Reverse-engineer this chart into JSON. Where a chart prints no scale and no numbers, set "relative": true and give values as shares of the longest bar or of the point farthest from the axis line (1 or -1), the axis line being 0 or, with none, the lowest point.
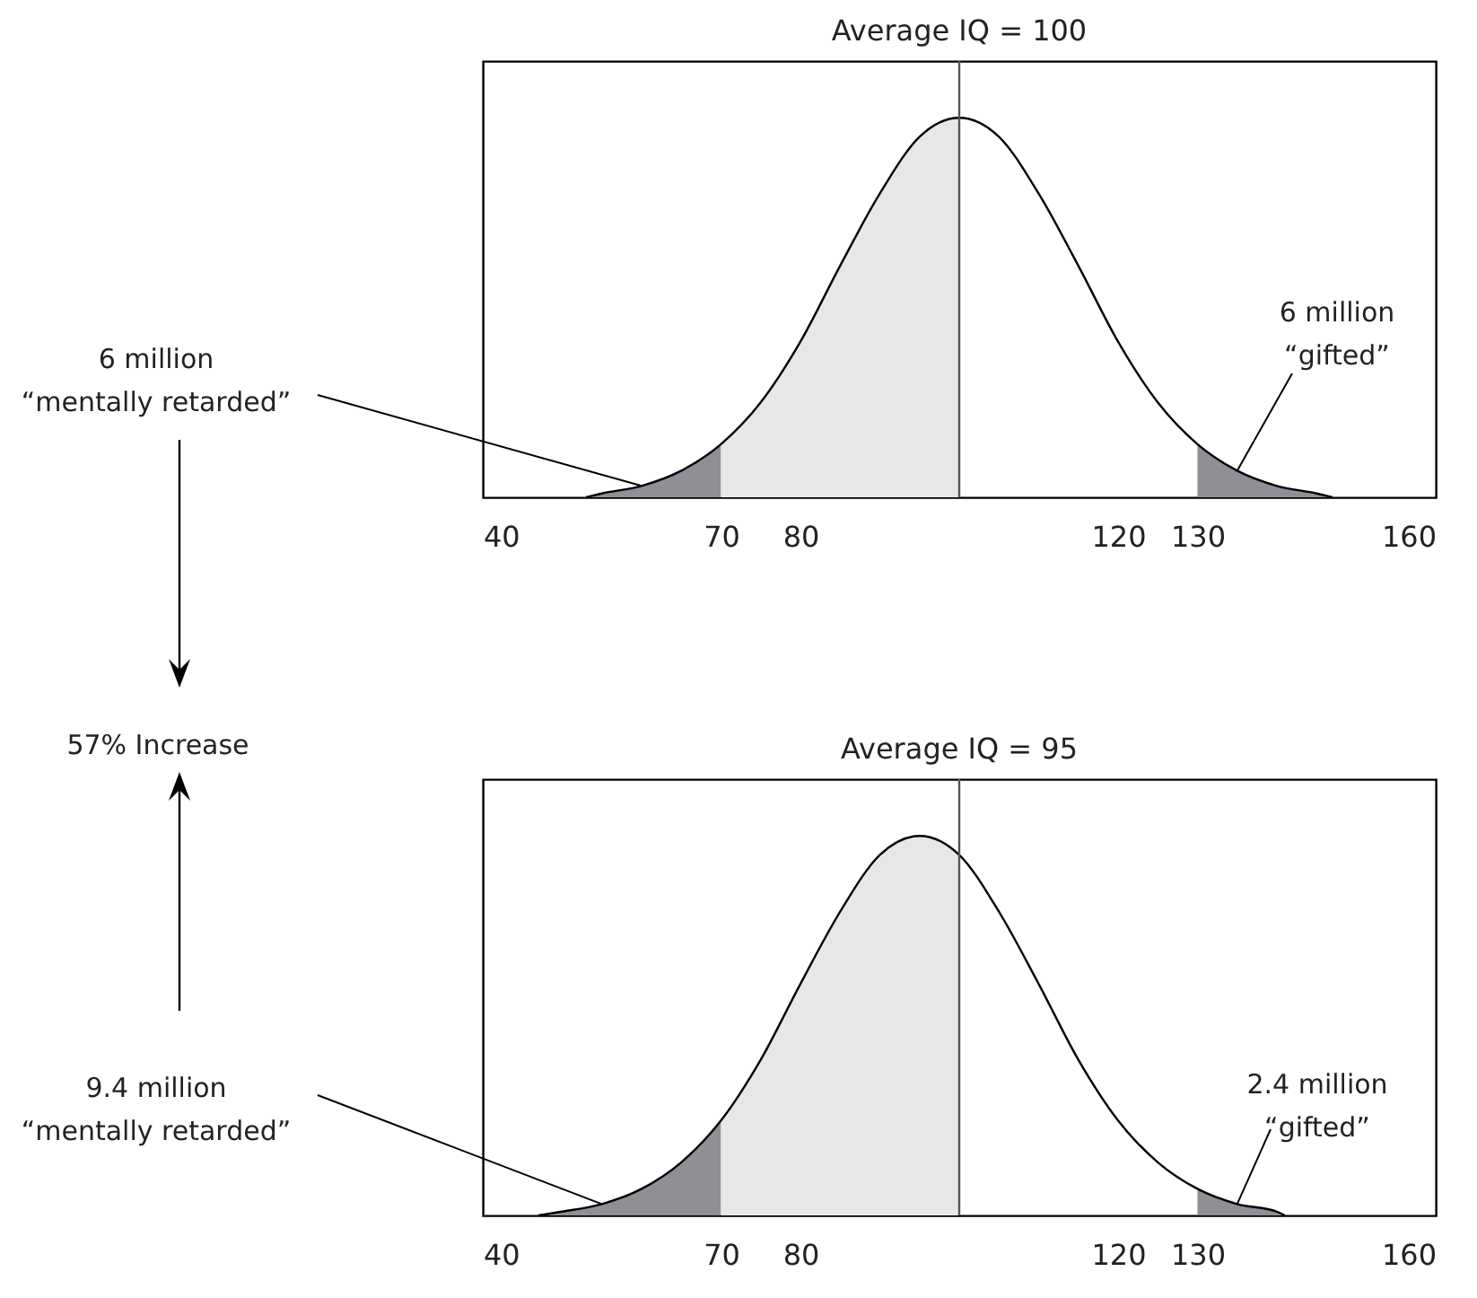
{
  "chart_data": [
    {
      "type": "area",
      "title": "Average IQ = 100",
      "relative": true,
      "xlim": [
        40,
        160
      ],
      "xticks": [
        40,
        70,
        80,
        120,
        130,
        160
      ],
      "series": [
        {
          "color": "#8f9095",
          "x": [
            53,
            55,
            60,
            65,
            70
          ],
          "values": [
            0,
            0.01,
            0.03,
            0.07,
            0.14
          ]
        },
        {
          "color": "#e6e7e9",
          "x": [
            70,
            75,
            80,
            85,
            90,
            95,
            100
          ],
          "values": [
            0.14,
            0.25,
            0.41,
            0.61,
            0.8,
            0.95,
            1
          ]
        },
        {
          "color": "#8f9095",
          "x": [
            130,
            135,
            140,
            145,
            147
          ],
          "values": [
            0.14,
            0.07,
            0.03,
            0.01,
            0
          ]
        },
        {
          "type": "line",
          "color": "#000000",
          "x": [
            53,
            55,
            60,
            65,
            70,
            75,
            80,
            85,
            90,
            95,
            100,
            105,
            110,
            115,
            120,
            125,
            130,
            135,
            140,
            145,
            147
          ],
          "values": [
            0,
            0.01,
            0.03,
            0.07,
            0.14,
            0.25,
            0.41,
            0.61,
            0.8,
            0.95,
            1,
            0.95,
            0.8,
            0.61,
            0.41,
            0.25,
            0.14,
            0.07,
            0.03,
            0.01,
            0
          ]
        }
      ],
      "ref_lines": [
        {
          "axis": "x",
          "value": 100,
          "color": "#555555"
        }
      ],
      "annotations": [
        {
          "text": "6 million\n“mentally retarded”",
          "x": 60,
          "y": 0.03
        },
        {
          "text": "6 million\n“gifted”",
          "x": 135,
          "y": 0.07
        },
        "57% Increase"
      ]
    },
    {
      "type": "area",
      "title": "Average IQ = 95",
      "relative": true,
      "xlim": [
        40,
        160
      ],
      "xticks": [
        40,
        70,
        80,
        120,
        130,
        160
      ],
      "series": [
        {
          "color": "#8f9095",
          "x": [
            47,
            50,
            55,
            60,
            65,
            70
          ],
          "values": [
            0,
            0.01,
            0.03,
            0.07,
            0.14,
            0.25
          ]
        },
        {
          "color": "#e6e7e9",
          "x": [
            70,
            75,
            80,
            85,
            90,
            95,
            100
          ],
          "values": [
            0.25,
            0.41,
            0.61,
            0.8,
            0.95,
            1,
            0.95
          ]
        },
        {
          "color": "#8f9095",
          "x": [
            130,
            135,
            140,
            141
          ],
          "values": [
            0.07,
            0.03,
            0.01,
            0
          ]
        },
        {
          "type": "line",
          "color": "#000000",
          "x": [
            47,
            50,
            55,
            60,
            65,
            70,
            75,
            80,
            85,
            90,
            95,
            100,
            105,
            110,
            115,
            120,
            125,
            130,
            135,
            140,
            141
          ],
          "values": [
            0,
            0.01,
            0.03,
            0.07,
            0.14,
            0.25,
            0.41,
            0.61,
            0.8,
            0.95,
            1,
            0.95,
            0.8,
            0.61,
            0.41,
            0.25,
            0.14,
            0.07,
            0.03,
            0.01,
            0
          ]
        }
      ],
      "ref_lines": [
        {
          "axis": "x",
          "value": 100,
          "color": "#555555"
        }
      ],
      "annotations": [
        {
          "text": "9.4 million\n“mentally retarded”",
          "x": 55,
          "y": 0.03
        },
        {
          "text": "2.4 million\n“gifted”",
          "x": 135,
          "y": 0.03
        }
      ]
    }
  ]
}
